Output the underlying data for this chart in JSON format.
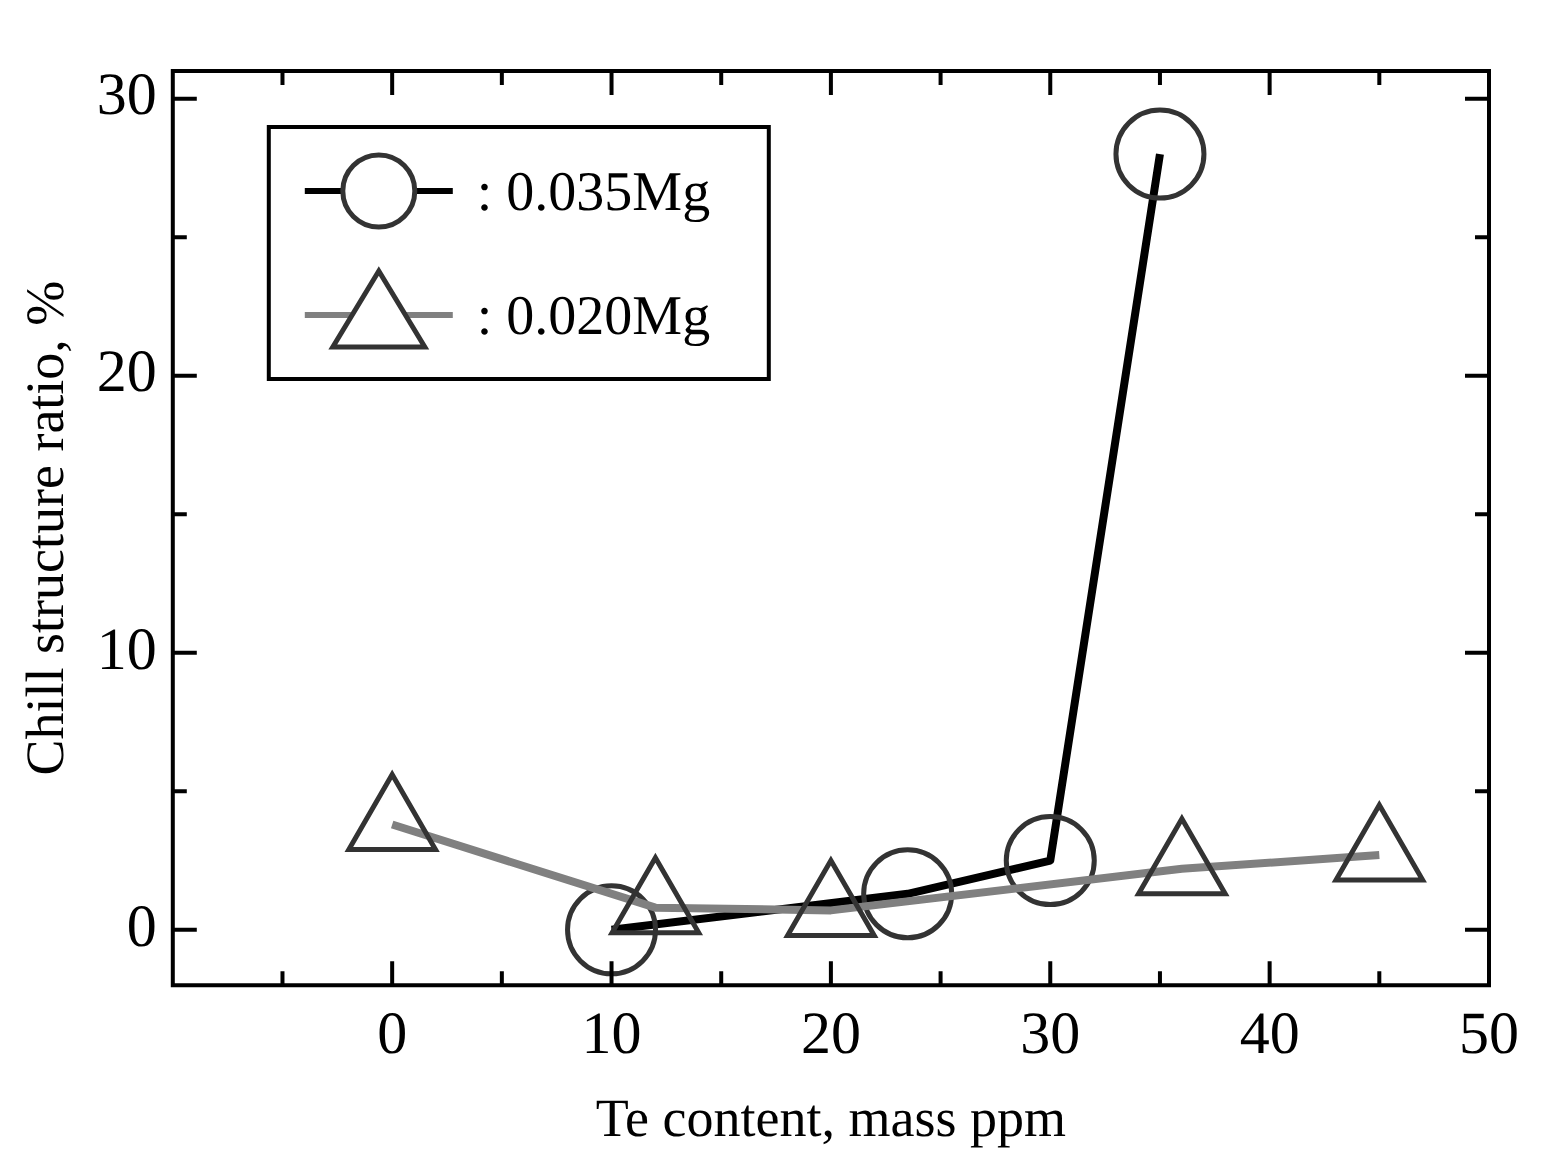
{
  "chart_data": {
    "type": "line",
    "xlabel": "Te content, mass ppm",
    "ylabel": "Chill structure ratio, %",
    "xlim": [
      -10,
      50
    ],
    "ylim": [
      -2,
      31
    ],
    "xticks": [
      {
        "value": -5,
        "label": null
      },
      0,
      {
        "value": 5,
        "label": null
      },
      10,
      {
        "value": 15,
        "label": null
      },
      20,
      {
        "value": 25,
        "label": null
      },
      30,
      {
        "value": 35,
        "label": null
      },
      40,
      {
        "value": 45,
        "label": null
      },
      50
    ],
    "yticks": [
      0,
      {
        "value": 5,
        "label": null
      },
      10,
      {
        "value": 15,
        "label": null
      },
      20,
      {
        "value": 25,
        "label": null
      },
      30
    ],
    "legend": "top left",
    "line_style": "solid",
    "series": [
      {
        "name": ": 0.035Mg",
        "color": "#000000",
        "marker": "circle",
        "x": [
          10,
          23.5,
          30,
          35
        ],
        "values": [
          0,
          1.3,
          2.5,
          28
        ]
      },
      {
        "name": ": 0.020Mg",
        "color": "#808080",
        "marker": "triangle",
        "x": [
          0,
          12,
          20,
          36,
          45
        ],
        "values": [
          3.8,
          0.8,
          0.7,
          2.2,
          2.7
        ]
      }
    ]
  }
}
